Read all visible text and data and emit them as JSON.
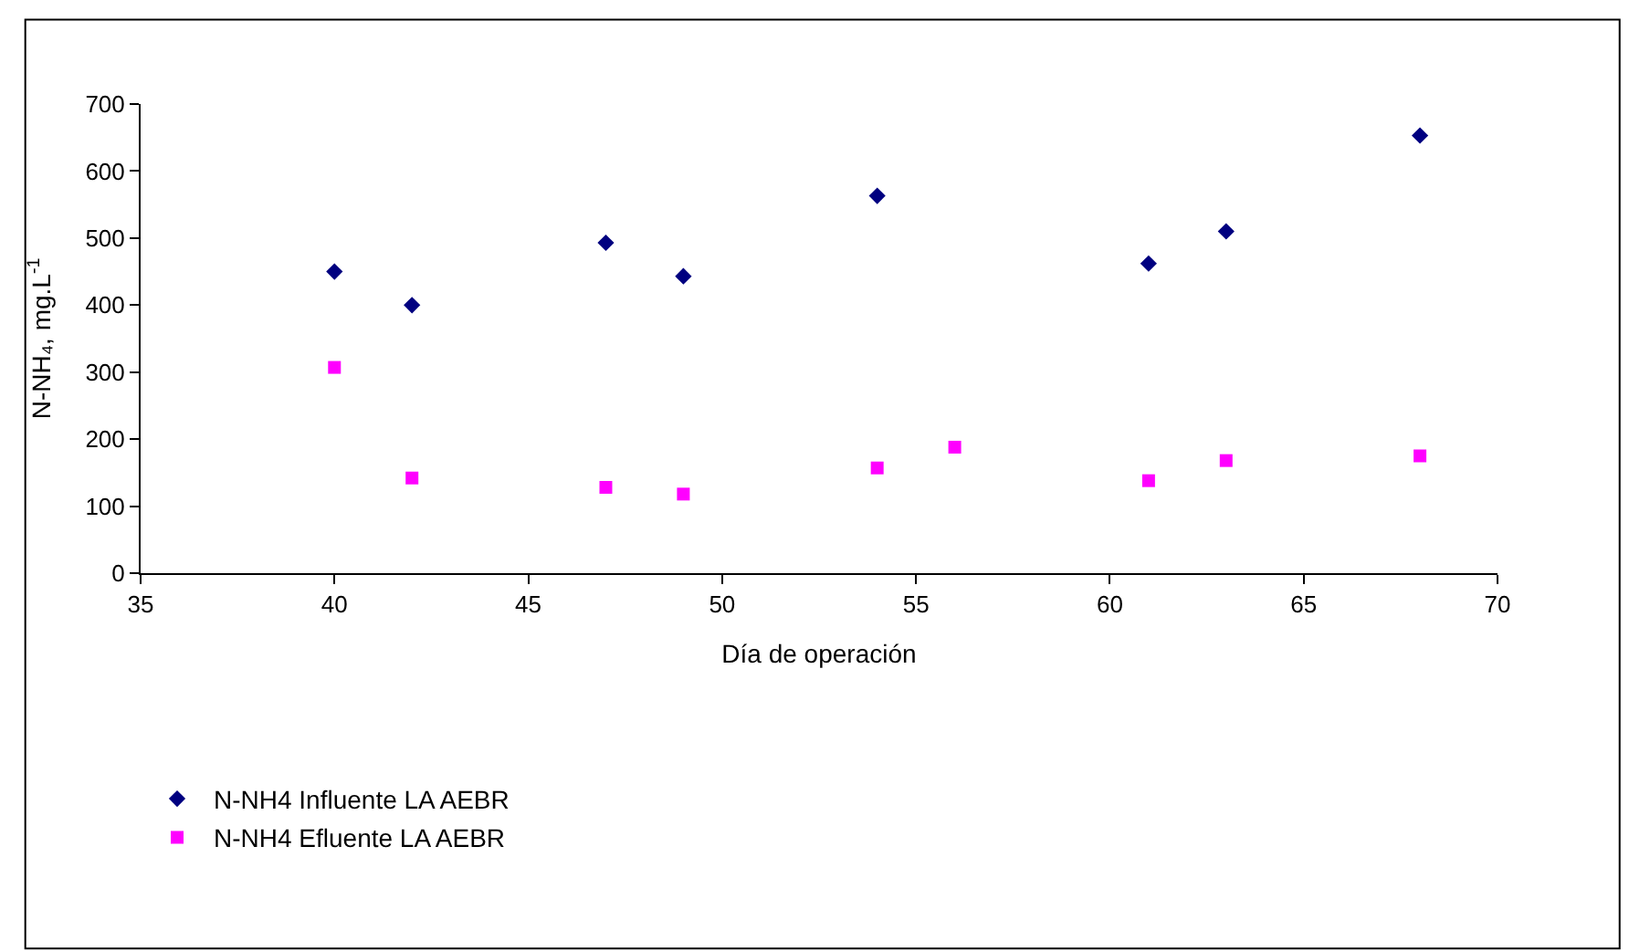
{
  "chart_data": {
    "type": "scatter",
    "xlabel": "Día de operación",
    "ylabel": "N-NH₄, mg.L$^{-1}$",
    "xlim": [
      35,
      70
    ],
    "xticks": [
      35,
      40,
      45,
      50,
      55,
      60,
      65,
      70
    ],
    "ylim": [
      0,
      700
    ],
    "yticks": [
      0,
      100,
      200,
      300,
      400,
      500,
      600,
      700
    ],
    "grid": false,
    "legend": "bottom",
    "series": [
      {
        "name": "N-NH4 Influente LA AEBR",
        "color": "#000080",
        "marker": "diamond",
        "x": [
          40,
          42,
          47,
          49,
          54,
          61,
          63,
          68
        ],
        "values": [
          450,
          400,
          493,
          443,
          563,
          462,
          510,
          653
        ]
      },
      {
        "name": "N-NH4 Efluente LA AEBR",
        "color": "#ff00ff",
        "marker": "square",
        "x": [
          40,
          42,
          47,
          49,
          54,
          56,
          61,
          63,
          68
        ],
        "values": [
          307,
          142,
          128,
          118,
          157,
          188,
          138,
          168,
          175
        ]
      }
    ]
  }
}
